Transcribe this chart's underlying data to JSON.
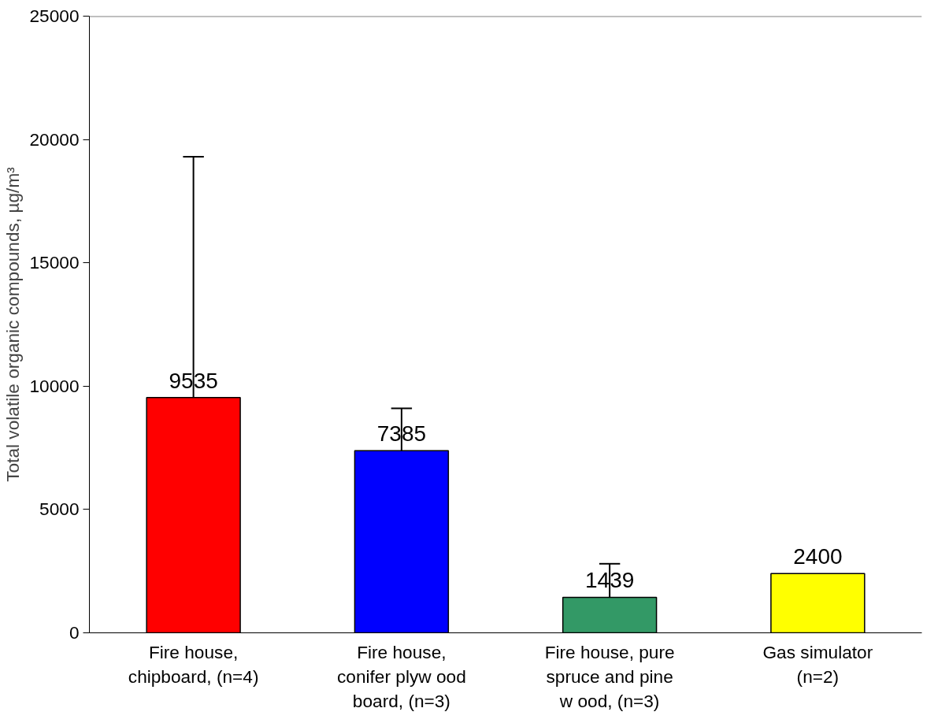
{
  "chart_data": {
    "type": "bar",
    "ylabel": "Total volatile organic compounds, µg/m³",
    "categories": [
      "Fire house,\nchipboard, (n=4)",
      "Fire house,\nconifer plyw ood\nboard, (n=3)",
      "Fire house, pure\nspruce and pine\nw ood, (n=3)",
      "Gas simulator\n(n=2)"
    ],
    "values": [
      9535,
      7385,
      1439,
      2400
    ],
    "colors": [
      "#ff0000",
      "#0000ff",
      "#339966",
      "#ffff00"
    ],
    "errors": [
      [
        9535,
        19300
      ],
      [
        7385,
        9100
      ],
      [
        1439,
        2800
      ],
      null
    ],
    "data_labels": true,
    "ylim": [
      0,
      25000
    ],
    "yticks": [
      0,
      5000,
      10000,
      15000,
      20000,
      25000
    ],
    "grid": false
  }
}
